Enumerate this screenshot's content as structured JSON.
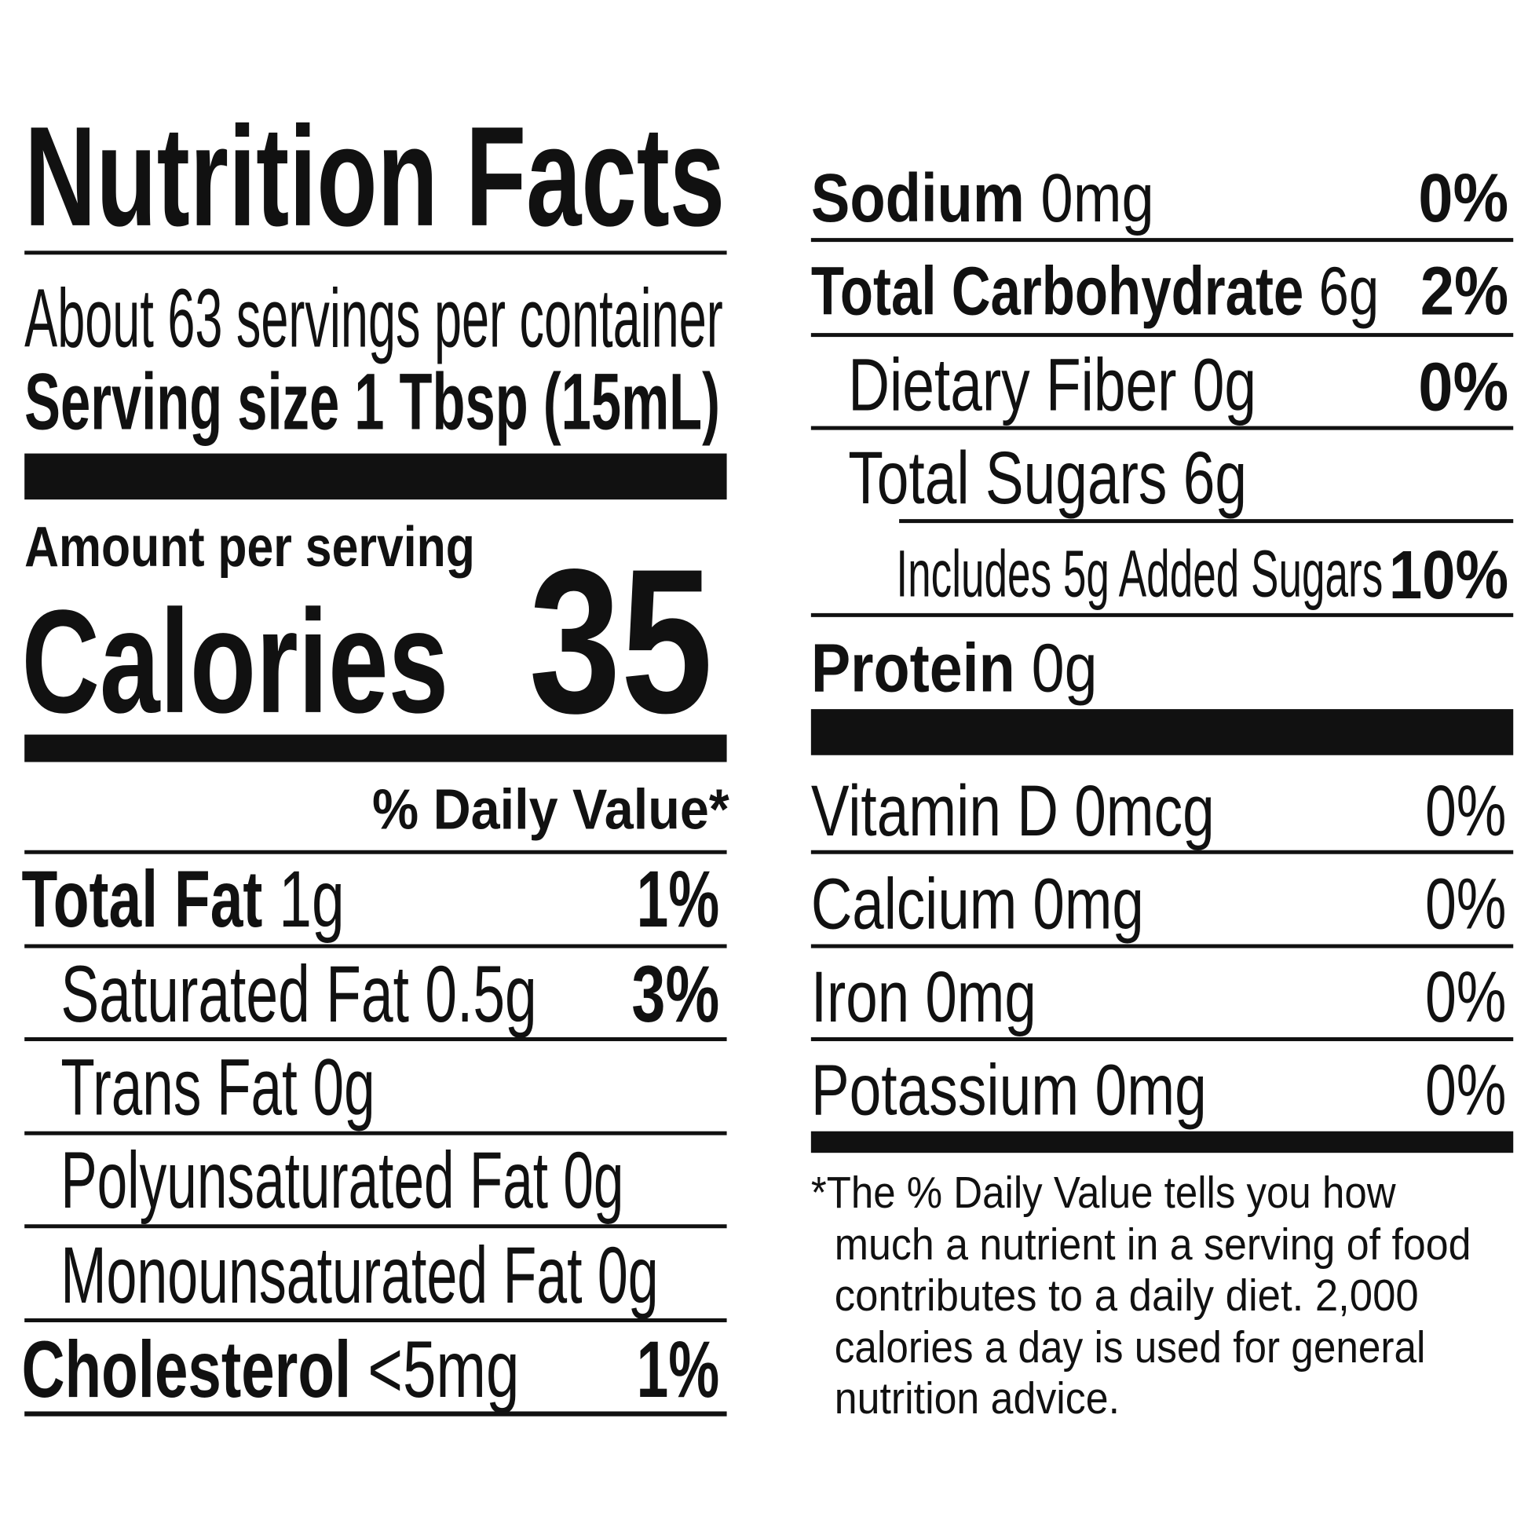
{
  "title": "Nutrition Facts",
  "servings_per_container": "About 63 servings per container",
  "serving_size": {
    "label": "Serving size",
    "value": "1 Tbsp (15mL)"
  },
  "amount_per_serving": "Amount per serving",
  "calories": {
    "label": "Calories",
    "value": "35"
  },
  "daily_value_header": "% Daily Value*",
  "nutrients": [
    {
      "name": "Total Fat",
      "amount": "1g",
      "dv": "1%"
    },
    {
      "name": "Saturated Fat 0.5g",
      "dv": "3%"
    },
    {
      "name": "Trans Fat 0g"
    },
    {
      "name": "Polyunsaturated Fat 0g"
    },
    {
      "name": "Monounsaturated Fat 0g"
    },
    {
      "name": "Cholesterol",
      "amount": "<5mg",
      "dv": "1%"
    },
    {
      "name": "Sodium",
      "amount": "0mg",
      "dv": "0%"
    },
    {
      "name": "Total Carbohydrate",
      "amount": "6g",
      "dv": "2%"
    },
    {
      "name": "Dietary Fiber 0g",
      "dv": "0%"
    },
    {
      "name": "Total Sugars 6g"
    },
    {
      "name": "Includes 5g Added Sugars",
      "dv": "10%"
    },
    {
      "name": "Protein",
      "amount": "0g"
    }
  ],
  "vitamins": [
    {
      "name": "Vitamin D 0mcg",
      "dv": "0%"
    },
    {
      "name": "Calcium 0mg",
      "dv": "0%"
    },
    {
      "name": "Iron 0mg",
      "dv": "0%"
    },
    {
      "name": "Potassium 0mg",
      "dv": "0%"
    }
  ],
  "footnote": [
    "*The % Daily Value tells you how",
    "much a nutrient in a serving of food",
    "contributes to a daily diet. 2,000",
    "calories a day is used for general",
    "nutrition advice."
  ]
}
